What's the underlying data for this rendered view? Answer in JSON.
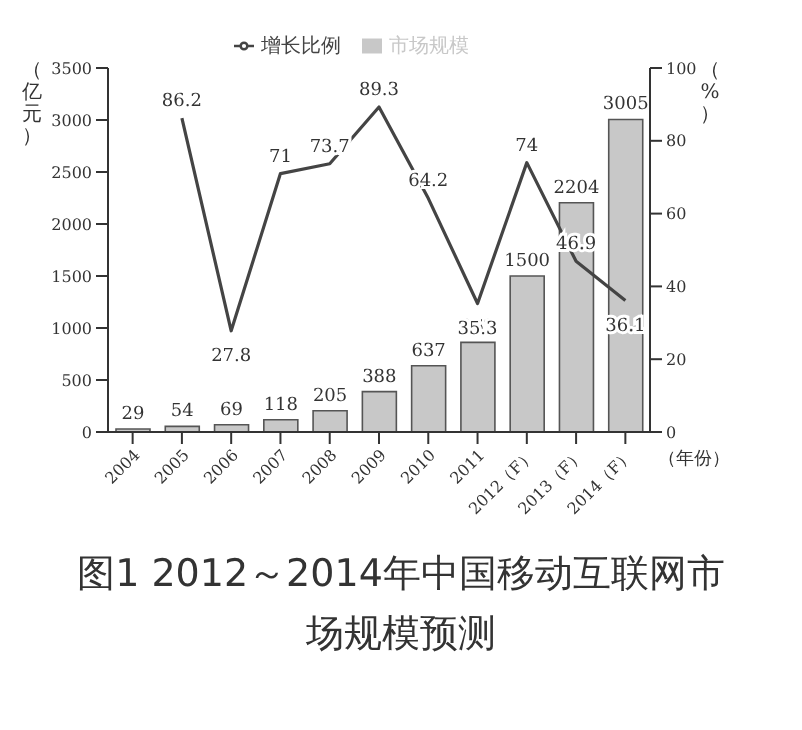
{
  "chart_data": {
    "type": "bar",
    "title": "图1 2012～2014年中国移动互联网市场规模预测",
    "xlabel": "（年份）",
    "ylabel": "（亿元）",
    "y2label": "（%）",
    "categories": [
      "2004",
      "2005",
      "2006",
      "2007",
      "2008",
      "2009",
      "2010",
      "2011",
      "2012（F）",
      "2013（F）",
      "2014（F）"
    ],
    "series": [
      {
        "name": "市场规模",
        "color": "#c8c8c8",
        "values": [
          29,
          54,
          69,
          118,
          205,
          388,
          637,
          862,
          1500,
          2204,
          3005
        ]
      },
      {
        "name": "增长比例",
        "type": "line",
        "axis": "y2",
        "color": "#444444",
        "values": [
          null,
          86.2,
          27.8,
          71,
          73.7,
          89.3,
          64.2,
          35.3,
          74,
          46.9,
          36.1
        ]
      }
    ],
    "ylim": [
      0,
      3500
    ],
    "yticks": [
      0,
      500,
      1000,
      1500,
      2000,
      2500,
      3000,
      3500
    ],
    "y2lim": [
      0,
      100
    ],
    "y2ticks": [
      0,
      20,
      40,
      60,
      80,
      100
    ],
    "data_labels": true,
    "legend": "top",
    "grid": false,
    "marker": "none"
  }
}
